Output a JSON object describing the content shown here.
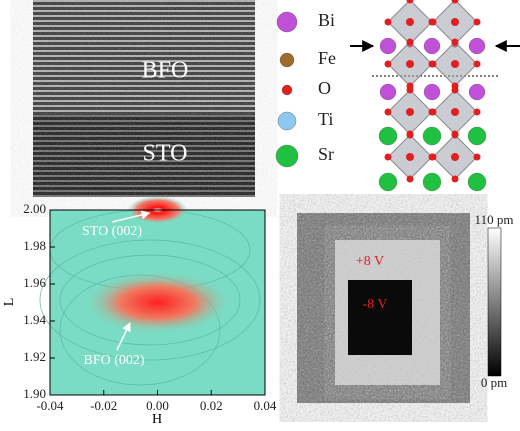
{
  "tem": {
    "labels": [
      "BFO",
      "STO"
    ]
  },
  "legend": {
    "items": [
      {
        "label": "Bi",
        "color": "#c050d8"
      },
      {
        "label": "Fe",
        "color": "#a06a2a"
      },
      {
        "label": "O",
        "color": "#e02020"
      },
      {
        "label": "Ti",
        "color": "#8cc8f0"
      },
      {
        "label": "Sr",
        "color": "#20c040"
      }
    ]
  },
  "rsm": {
    "xlabel": "H",
    "ylabel": "L",
    "xlim": [
      -0.04,
      0.04
    ],
    "ylim": [
      1.9,
      2.0
    ],
    "xticks": [
      {
        "value": -0.04,
        "label": "-0.04"
      },
      {
        "value": -0.02,
        "label": "-0.02"
      },
      {
        "value": 0,
        "label": "0.00"
      },
      {
        "value": 0.02,
        "label": "0.02"
      },
      {
        "value": 0.04,
        "label": "0.04"
      }
    ],
    "yticks": [
      {
        "value": 1.9,
        "label": "1.90"
      },
      {
        "value": 1.92,
        "label": "1.92"
      },
      {
        "value": 1.94,
        "label": "1.94"
      },
      {
        "value": 1.96,
        "label": "1.96"
      },
      {
        "value": 1.98,
        "label": "1.98"
      },
      {
        "value": 2.0,
        "label": "2.00"
      }
    ],
    "peaks": [
      {
        "label": "STO (002)",
        "h": 0,
        "l": 2.0
      },
      {
        "label": "BFO (002)",
        "h": 0,
        "l": 1.95
      }
    ]
  },
  "pfm": {
    "labels": [
      "+8 V",
      "-8 V"
    ],
    "colorbar": {
      "max": "110 pm",
      "min": "0 pm"
    }
  }
}
